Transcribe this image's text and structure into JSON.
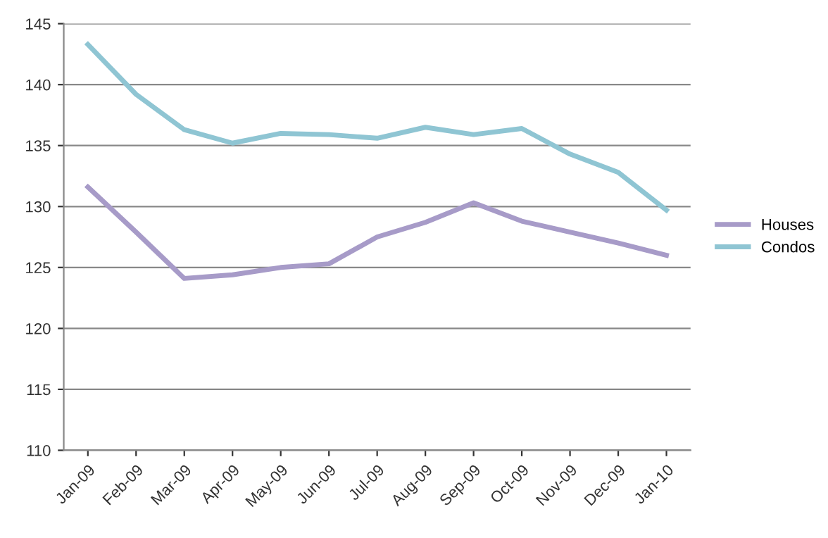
{
  "chart_data": {
    "type": "line",
    "categories": [
      "Jan-09",
      "Feb-09",
      "Mar-09",
      "Apr-09",
      "May-09",
      "Jun-09",
      "Jul-09",
      "Aug-09",
      "Sep-09",
      "Oct-09",
      "Nov-09",
      "Dec-09",
      "Jan-10"
    ],
    "series": [
      {
        "name": "Houses",
        "color": "#a79bc8",
        "values": [
          131.6,
          127.9,
          124.1,
          124.4,
          125.0,
          125.3,
          127.5,
          128.7,
          130.3,
          128.8,
          127.9,
          127.0,
          126.0
        ]
      },
      {
        "name": "Condos",
        "color": "#8fc5d3",
        "values": [
          143.3,
          139.2,
          136.3,
          135.2,
          136.0,
          135.9,
          135.6,
          136.5,
          135.9,
          136.4,
          134.3,
          132.8,
          129.7
        ]
      }
    ],
    "ylim": [
      110,
      145
    ],
    "yticks": [
      110,
      115,
      120,
      125,
      130,
      135,
      140,
      145
    ],
    "grid": "y",
    "legend": "right",
    "marker": "none",
    "line_style": "solid"
  }
}
